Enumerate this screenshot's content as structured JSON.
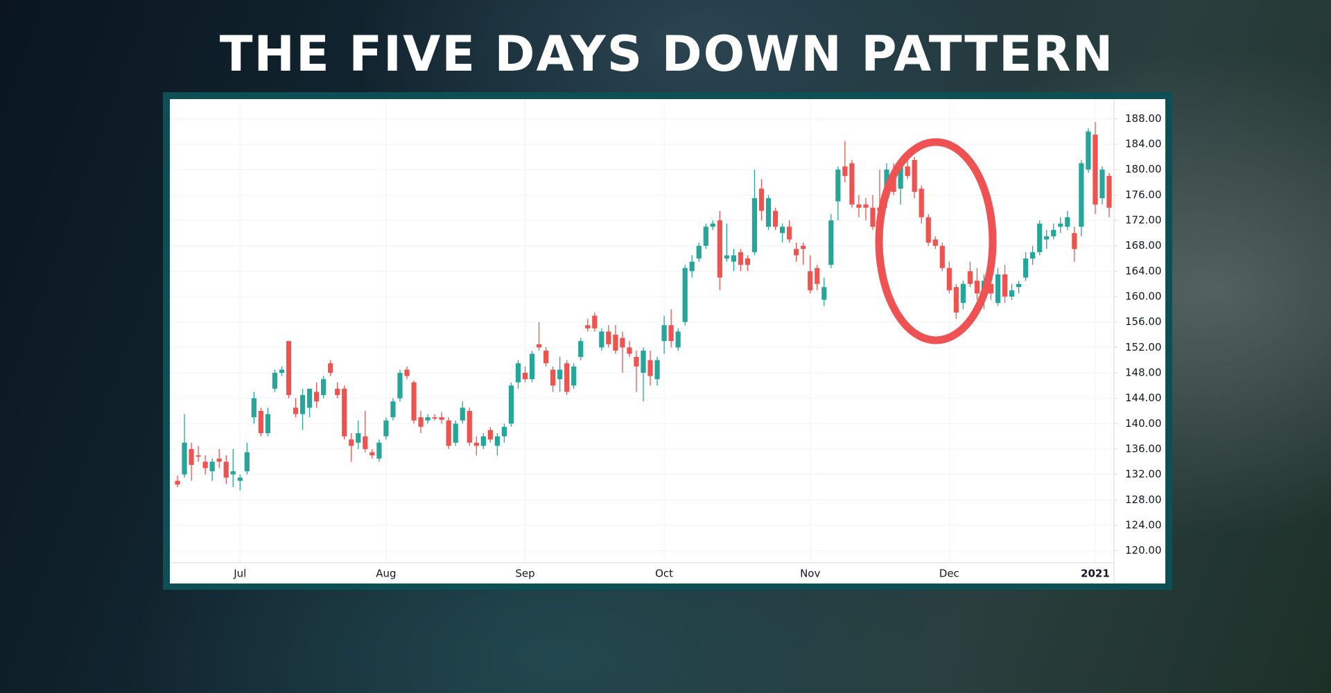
{
  "chart_data": {
    "type": "candlestick",
    "title": "THE FIVE DAYS DOWN PATTERN",
    "up_color": "#26a69a",
    "down_color": "#ef5350",
    "grid": true,
    "ylim": [
      118.1,
      191.1
    ],
    "yticks": [
      {
        "value": 120,
        "label": "120.00"
      },
      {
        "value": 124,
        "label": "124.00"
      },
      {
        "value": 128,
        "label": "128.00"
      },
      {
        "value": 132,
        "label": "132.00"
      },
      {
        "value": 136,
        "label": "136.00"
      },
      {
        "value": 140,
        "label": "140.00"
      },
      {
        "value": 144,
        "label": "144.00"
      },
      {
        "value": 148,
        "label": "148.00"
      },
      {
        "value": 152,
        "label": "152.00"
      },
      {
        "value": 156,
        "label": "156.00"
      },
      {
        "value": 160,
        "label": "160.00"
      },
      {
        "value": 164,
        "label": "164.00"
      },
      {
        "value": 168,
        "label": "168.00"
      },
      {
        "value": 172,
        "label": "172.00"
      },
      {
        "value": 176,
        "label": "176.00"
      },
      {
        "value": 180,
        "label": "180.00"
      },
      {
        "value": 184,
        "label": "184.00"
      },
      {
        "value": 188,
        "label": "188.00"
      }
    ],
    "categories": [
      null,
      null,
      null,
      null,
      null,
      null,
      null,
      null,
      null,
      "Jul",
      null,
      null,
      null,
      null,
      null,
      null,
      null,
      null,
      null,
      null,
      null,
      null,
      null,
      null,
      null,
      null,
      null,
      null,
      null,
      null,
      "Aug",
      null,
      null,
      null,
      null,
      null,
      null,
      null,
      null,
      null,
      null,
      null,
      null,
      null,
      null,
      null,
      null,
      null,
      null,
      null,
      "Sep",
      null,
      null,
      null,
      null,
      null,
      null,
      null,
      null,
      null,
      null,
      null,
      null,
      null,
      null,
      null,
      null,
      null,
      null,
      null,
      "Oct",
      null,
      null,
      null,
      null,
      null,
      null,
      null,
      null,
      null,
      null,
      null,
      null,
      null,
      null,
      null,
      null,
      null,
      null,
      null,
      null,
      "Nov",
      null,
      null,
      null,
      null,
      null,
      null,
      null,
      null,
      null,
      null,
      null,
      null,
      null,
      null,
      null,
      null,
      null,
      null,
      null,
      "Dec",
      null,
      null,
      null,
      null,
      null,
      null,
      null,
      null,
      null,
      null,
      null,
      null,
      null,
      null,
      null,
      null,
      null,
      null,
      null,
      null,
      "2021",
      null,
      null
    ],
    "open": [
      131.0,
      132.0,
      136.0,
      135.0,
      134.0,
      132.5,
      134.5,
      134.0,
      132.0,
      131.0,
      132.5,
      141.0,
      142.0,
      138.5,
      145.5,
      148.0,
      153.0,
      142.5,
      141.5,
      142.5,
      145.0,
      144.5,
      149.5,
      145.5,
      145.5,
      137.5,
      137.0,
      138.0,
      135.5,
      134.5,
      138.0,
      141.0,
      144.0,
      148.5,
      146.5,
      141.0,
      140.5,
      141.0,
      141.0,
      140.5,
      137.0,
      140.5,
      142.0,
      137.0,
      136.5,
      139.0,
      136.5,
      138.0,
      140.0,
      146.5,
      148.0,
      147.0,
      152.5,
      151.5,
      148.5,
      147.0,
      149.5,
      146.0,
      150.5,
      155.5,
      157.0,
      152.0,
      154.5,
      154.0,
      153.5,
      152.0,
      150.5,
      148.0,
      150.0,
      147.0,
      153.0,
      155.5,
      152.0,
      156.0,
      164.0,
      166.0,
      168.0,
      171.0,
      172.0,
      166.0,
      165.5,
      167.0,
      166.0,
      167.0,
      177.0,
      171.0,
      173.5,
      170.0,
      171.0,
      167.5,
      168.0,
      164.0,
      164.5,
      159.5,
      165.0,
      175.0,
      180.5,
      181.0,
      174.5,
      174.5,
      174.0,
      174.0,
      175.5,
      179.0,
      177.0,
      180.5,
      181.5,
      177.0,
      172.5,
      169.0,
      168.0,
      164.5,
      161.5,
      159.0,
      164.0,
      162.5,
      160.5,
      162.0,
      159.0,
      163.5,
      160.0,
      161.5,
      163.0,
      166.0,
      167.0,
      169.0,
      169.5,
      171.0,
      171.0,
      170.0,
      171.0,
      180.0,
      185.5,
      175.5,
      179.0
    ],
    "high": [
      131.8,
      141.5,
      137.0,
      136.5,
      135.0,
      134.5,
      136.0,
      135.0,
      136.0,
      132.0,
      137.0,
      145.0,
      142.5,
      142.5,
      148.5,
      149.0,
      153.0,
      144.0,
      145.5,
      145.5,
      146.5,
      147.5,
      150.0,
      146.5,
      146.0,
      138.5,
      140.5,
      142.0,
      136.0,
      137.5,
      141.0,
      144.0,
      148.5,
      149.0,
      146.8,
      142.0,
      141.5,
      141.5,
      141.8,
      141.0,
      140.5,
      143.5,
      142.5,
      138.0,
      138.5,
      139.5,
      138.5,
      140.0,
      146.5,
      150.0,
      149.0,
      151.5,
      156.0,
      152.0,
      149.0,
      150.5,
      150.0,
      149.5,
      153.5,
      156.5,
      157.5,
      155.0,
      155.5,
      155.5,
      154.5,
      153.0,
      151.5,
      152.0,
      151.5,
      150.5,
      157.0,
      158.0,
      155.0,
      165.0,
      166.5,
      168.5,
      171.5,
      172.0,
      173.5,
      171.5,
      167.5,
      167.5,
      166.5,
      180.0,
      178.5,
      176.0,
      174.0,
      171.5,
      172.0,
      168.5,
      168.5,
      166.5,
      165.0,
      163.0,
      173.0,
      180.5,
      184.5,
      181.5,
      176.0,
      175.5,
      176.0,
      180.0,
      181.0,
      181.0,
      181.5,
      182.0,
      182.0,
      177.5,
      173.0,
      169.5,
      168.5,
      165.5,
      162.0,
      162.5,
      165.5,
      164.5,
      163.5,
      164.5,
      164.5,
      165.0,
      162.0,
      162.5,
      167.0,
      168.0,
      172.0,
      170.5,
      171.5,
      172.5,
      173.5,
      171.0,
      181.5,
      186.5,
      187.5,
      180.5,
      179.5
    ],
    "low": [
      130.0,
      131.5,
      131.0,
      134.0,
      132.0,
      131.0,
      133.0,
      130.5,
      130.0,
      129.5,
      132.0,
      140.0,
      138.0,
      138.0,
      145.0,
      147.5,
      144.0,
      141.0,
      139.0,
      141.0,
      142.5,
      144.0,
      147.5,
      144.0,
      137.5,
      134.0,
      136.0,
      135.5,
      134.5,
      134.0,
      137.5,
      140.5,
      143.5,
      147.0,
      140.0,
      138.5,
      140.0,
      140.5,
      140.0,
      136.0,
      136.5,
      140.0,
      136.5,
      135.0,
      136.0,
      137.0,
      135.0,
      137.0,
      139.5,
      145.5,
      146.5,
      146.5,
      151.5,
      149.0,
      145.0,
      145.0,
      144.5,
      145.5,
      150.0,
      154.5,
      154.5,
      151.5,
      152.0,
      151.0,
      148.0,
      150.5,
      145.0,
      143.5,
      146.0,
      146.0,
      151.0,
      152.0,
      151.5,
      155.5,
      163.0,
      165.5,
      167.5,
      170.5,
      161.0,
      165.5,
      164.0,
      164.0,
      164.0,
      166.5,
      172.0,
      170.5,
      170.5,
      168.5,
      168.5,
      165.5,
      165.0,
      160.5,
      161.0,
      158.5,
      164.5,
      172.0,
      178.0,
      174.0,
      172.5,
      172.0,
      170.5,
      173.0,
      174.0,
      176.0,
      174.5,
      178.5,
      175.5,
      171.5,
      168.0,
      167.5,
      164.0,
      160.5,
      156.5,
      158.0,
      161.5,
      159.5,
      158.0,
      159.5,
      158.5,
      159.0,
      159.5,
      160.5,
      162.5,
      165.0,
      166.5,
      167.5,
      169.0,
      170.0,
      170.5,
      165.5,
      169.5,
      179.5,
      173.0,
      174.5,
      172.5
    ],
    "close": [
      130.4,
      137.0,
      133.5,
      134.8,
      133.0,
      134.0,
      134.0,
      131.5,
      132.5,
      131.5,
      135.5,
      144.0,
      138.5,
      141.5,
      148.0,
      148.5,
      144.5,
      141.5,
      144.5,
      145.5,
      143.5,
      147.0,
      148.0,
      144.5,
      138.0,
      136.5,
      138.5,
      136.0,
      135.0,
      137.0,
      140.5,
      143.5,
      148.0,
      147.5,
      140.5,
      139.5,
      141.0,
      140.8,
      140.6,
      136.5,
      140.0,
      142.5,
      137.0,
      136.5,
      138.0,
      137.5,
      138.0,
      139.5,
      146.0,
      149.5,
      147.0,
      151.0,
      152.0,
      149.5,
      146.0,
      148.5,
      145.0,
      149.0,
      153.0,
      155.0,
      155.0,
      154.5,
      152.5,
      151.5,
      152.0,
      151.0,
      149.0,
      151.5,
      147.5,
      150.0,
      155.5,
      153.0,
      154.5,
      164.5,
      165.5,
      168.0,
      171.0,
      171.5,
      163.0,
      166.5,
      166.5,
      165.0,
      165.0,
      175.5,
      173.5,
      175.5,
      171.0,
      171.0,
      169.0,
      166.5,
      167.5,
      161.0,
      162.0,
      161.5,
      172.0,
      180.0,
      179.0,
      174.5,
      174.0,
      174.0,
      171.0,
      173.5,
      180.0,
      176.5,
      181.0,
      179.0,
      176.5,
      172.5,
      168.5,
      168.0,
      164.5,
      161.0,
      157.5,
      162.0,
      162.0,
      160.5,
      162.5,
      160.5,
      163.5,
      160.0,
      161.0,
      162.0,
      166.0,
      167.0,
      171.5,
      169.5,
      170.5,
      171.5,
      172.5,
      167.5,
      181.0,
      186.0,
      174.5,
      180.0,
      174.0
    ]
  }
}
